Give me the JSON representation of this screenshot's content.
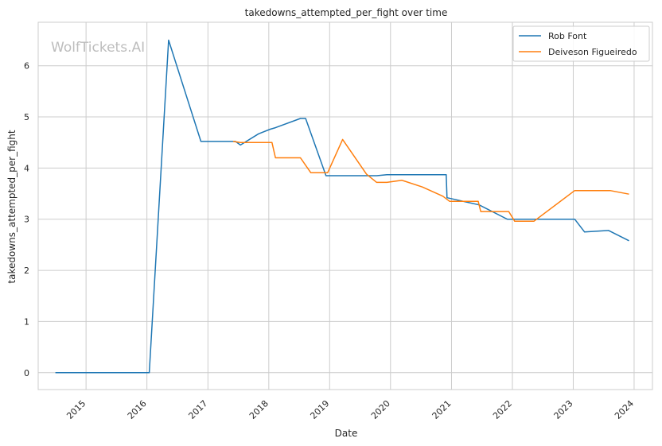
{
  "watermark": "WolfTickets.AI",
  "chart_data": {
    "type": "line",
    "title": "takedowns_attempted_per_fight over time",
    "xlabel": "Date",
    "ylabel": "takedowns_attempted_per_fight",
    "xlim": [
      "2014-03-20",
      "2024-04-20"
    ],
    "ylim": [
      -0.33,
      6.85
    ],
    "x_ticks": [
      "2015",
      "2016",
      "2017",
      "2018",
      "2019",
      "2020",
      "2021",
      "2022",
      "2023",
      "2024"
    ],
    "y_ticks": [
      0,
      1,
      2,
      3,
      4,
      5,
      6
    ],
    "grid": true,
    "legend_position": "top-right",
    "series": [
      {
        "name": "Rob Font",
        "color": "#1f77b4",
        "points": [
          [
            "2014-07-01",
            0
          ],
          [
            "2016-01-15",
            0
          ],
          [
            "2016-05-10",
            6.5
          ],
          [
            "2016-11-20",
            4.52
          ],
          [
            "2017-06-15",
            4.52
          ],
          [
            "2017-07-15",
            4.45
          ],
          [
            "2017-11-01",
            4.67
          ],
          [
            "2018-01-10",
            4.76
          ],
          [
            "2018-02-10",
            4.79
          ],
          [
            "2018-07-10",
            4.97
          ],
          [
            "2018-08-10",
            4.97
          ],
          [
            "2018-12-10",
            3.85
          ],
          [
            "2019-10-10",
            3.85
          ],
          [
            "2019-12-10",
            3.87
          ],
          [
            "2020-11-30",
            3.87
          ],
          [
            "2020-12-05",
            3.42
          ],
          [
            "2021-06-15",
            3.28
          ],
          [
            "2021-12-01",
            3.0
          ],
          [
            "2023-01-10",
            3.0
          ],
          [
            "2023-03-10",
            2.75
          ],
          [
            "2023-08-01",
            2.78
          ],
          [
            "2023-12-01",
            2.58
          ]
        ]
      },
      {
        "name": "Deiveson Figueiredo",
        "color": "#ff7f0e",
        "points": [
          [
            "2017-06-01",
            4.52
          ],
          [
            "2017-07-15",
            4.5
          ],
          [
            "2018-01-20",
            4.5
          ],
          [
            "2018-02-10",
            4.2
          ],
          [
            "2018-07-10",
            4.2
          ],
          [
            "2018-09-10",
            3.91
          ],
          [
            "2018-12-20",
            3.91
          ],
          [
            "2019-03-20",
            4.56
          ],
          [
            "2019-08-10",
            3.88
          ],
          [
            "2019-10-10",
            3.72
          ],
          [
            "2019-12-10",
            3.72
          ],
          [
            "2020-03-10",
            3.76
          ],
          [
            "2020-07-10",
            3.63
          ],
          [
            "2020-11-10",
            3.45
          ],
          [
            "2020-12-20",
            3.35
          ],
          [
            "2021-06-10",
            3.35
          ],
          [
            "2021-06-25",
            3.15
          ],
          [
            "2021-11-10",
            3.15
          ],
          [
            "2021-12-10",
            3.15
          ],
          [
            "2022-01-15",
            2.96
          ],
          [
            "2022-05-10",
            2.96
          ],
          [
            "2023-01-10",
            3.56
          ],
          [
            "2023-08-10",
            3.56
          ],
          [
            "2023-12-01",
            3.49
          ]
        ]
      }
    ]
  }
}
